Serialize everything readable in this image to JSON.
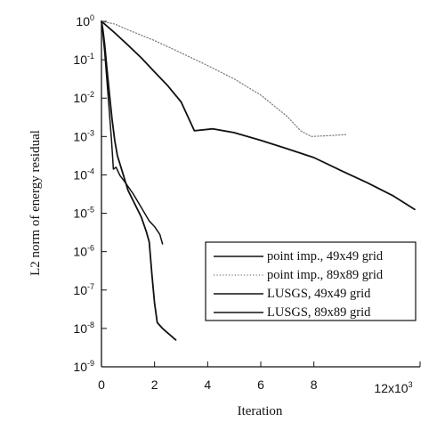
{
  "chart_data": {
    "type": "line",
    "title": "",
    "xlabel": "Iteration",
    "ylabel": "L2 norm of energy residual",
    "x_scale_label": "12x10",
    "x_scale_exponent": "3",
    "x_scale_value": 12,
    "xlim": [
      0,
      12
    ],
    "ylim": [
      -9,
      0
    ],
    "y_scale": "log10",
    "x_ticks": [
      {
        "value": 0,
        "label": "0"
      },
      {
        "value": 2,
        "label": "2"
      },
      {
        "value": 4,
        "label": "4"
      },
      {
        "value": 6,
        "label": "6"
      },
      {
        "value": 8,
        "label": "8"
      }
    ],
    "y_ticks": [
      {
        "value": 0,
        "base": "10",
        "exp": "0"
      },
      {
        "value": -1,
        "base": "10",
        "exp": "-1"
      },
      {
        "value": -2,
        "base": "10",
        "exp": "-2"
      },
      {
        "value": -3,
        "base": "10",
        "exp": "-3"
      },
      {
        "value": -4,
        "base": "10",
        "exp": "-4"
      },
      {
        "value": -5,
        "base": "10",
        "exp": "-5"
      },
      {
        "value": -6,
        "base": "10",
        "exp": "-6"
      },
      {
        "value": -7,
        "base": "10",
        "exp": "-7"
      },
      {
        "value": -8,
        "base": "10",
        "exp": "-8"
      },
      {
        "value": -9,
        "base": "10",
        "exp": "-9"
      }
    ],
    "grid": false,
    "legend_position": "bottom-right",
    "series": [
      {
        "name": "point imp., 49x49 grid",
        "style": "solid",
        "color": "#111111",
        "x": [
          0,
          0.5,
          1,
          1.5,
          2,
          2.5,
          3,
          3.5,
          4.2,
          5,
          6,
          7,
          8,
          9,
          10,
          11,
          11.8
        ],
        "y": [
          0,
          -0.3,
          -0.62,
          -0.95,
          -1.32,
          -1.68,
          -2.1,
          -2.85,
          -2.8,
          -2.9,
          -3.1,
          -3.32,
          -3.55,
          -3.88,
          -4.2,
          -4.55,
          -4.9
        ]
      },
      {
        "name": "point imp., 89x89 grid",
        "style": "dotted",
        "color": "#777777",
        "x": [
          0,
          0.5,
          1,
          2,
          3,
          4,
          5,
          6,
          7,
          7.5,
          7.9,
          8.5,
          9.2
        ],
        "y": [
          0,
          -0.07,
          -0.22,
          -0.5,
          -0.82,
          -1.15,
          -1.5,
          -1.92,
          -2.48,
          -2.85,
          -3.0,
          -2.98,
          -2.95
        ]
      },
      {
        "name": "LUSGS, 49x49 grid",
        "style": "solid",
        "color": "#111111",
        "x": [
          0,
          0.05,
          0.12,
          0.2,
          0.3,
          0.38,
          0.45,
          0.55,
          0.7,
          0.9,
          1.2,
          1.5,
          1.8,
          2.0,
          2.2,
          2.3
        ],
        "y": [
          0,
          -0.3,
          -0.8,
          -1.5,
          -2.4,
          -3.1,
          -3.85,
          -3.8,
          -4.02,
          -4.2,
          -4.5,
          -4.85,
          -5.2,
          -5.35,
          -5.55,
          -5.8
        ]
      },
      {
        "name": "LUSGS, 89x89 grid",
        "style": "solid",
        "color": "#111111",
        "x": [
          0,
          0.05,
          0.12,
          0.2,
          0.3,
          0.4,
          0.5,
          0.6,
          0.8,
          1.0,
          1.25,
          1.5,
          1.7,
          1.8,
          1.9,
          2.0,
          2.1,
          2.3,
          2.55,
          2.8
        ],
        "y": [
          0,
          -0.2,
          -0.6,
          -1.2,
          -1.9,
          -2.55,
          -3.1,
          -3.5,
          -3.95,
          -4.4,
          -4.75,
          -5.1,
          -5.5,
          -5.75,
          -6.6,
          -7.35,
          -7.85,
          -8.0,
          -8.15,
          -8.3
        ]
      }
    ]
  }
}
